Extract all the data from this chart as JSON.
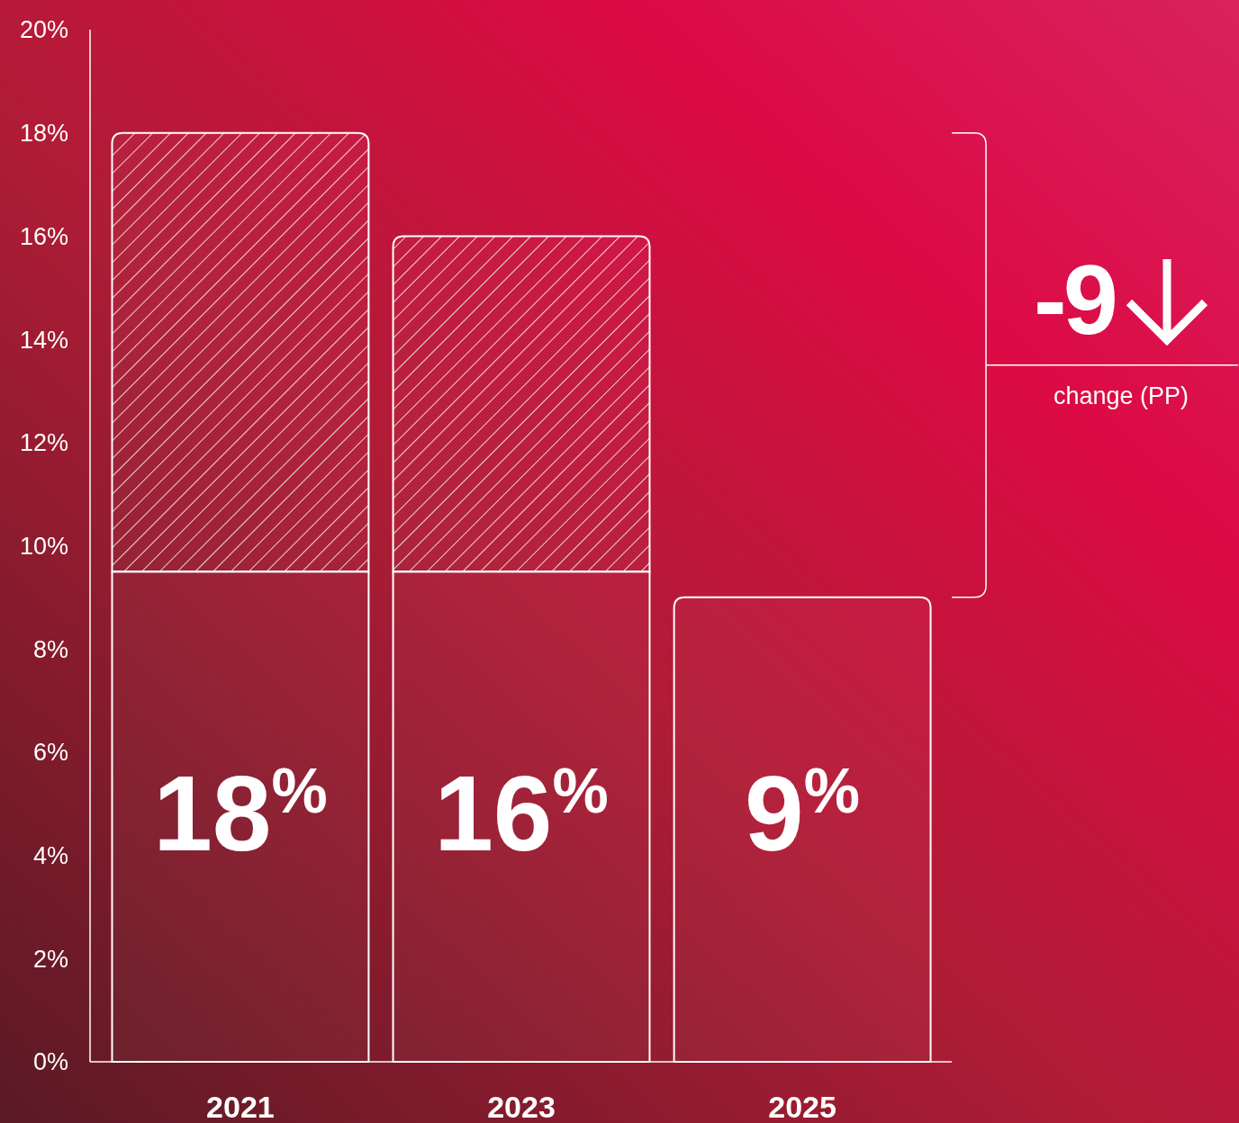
{
  "chart_data": {
    "type": "bar",
    "stacked": true,
    "categories": [
      "2021",
      "2023",
      "2025"
    ],
    "series": [
      {
        "color": "#ffffff",
        "values": [
          9.5,
          9.5,
          9
        ]
      },
      {
        "color": "#ffffff",
        "values": [
          8.5,
          6.5,
          null
        ]
      }
    ],
    "totals": [
      "18$^{%}$",
      "16$^{%}$",
      "9$^{%}$"
    ],
    "ylim": [
      0,
      20
    ],
    "yticks": [
      {
        "value": 0,
        "label": "0%"
      },
      {
        "value": 2,
        "label": "2%"
      },
      {
        "value": 4,
        "label": "4%"
      },
      {
        "value": 6,
        "label": "6%"
      },
      {
        "value": 8,
        "label": "8%"
      },
      {
        "value": 10,
        "label": "10%"
      },
      {
        "value": 12,
        "label": "12%"
      },
      {
        "value": 14,
        "label": "14%"
      },
      {
        "value": 16,
        "label": "16%"
      },
      {
        "value": 18,
        "label": "18%"
      },
      {
        "value": 20,
        "label": "20%"
      }
    ],
    "annotations": [
      "-9",
      "change (PP)"
    ]
  }
}
